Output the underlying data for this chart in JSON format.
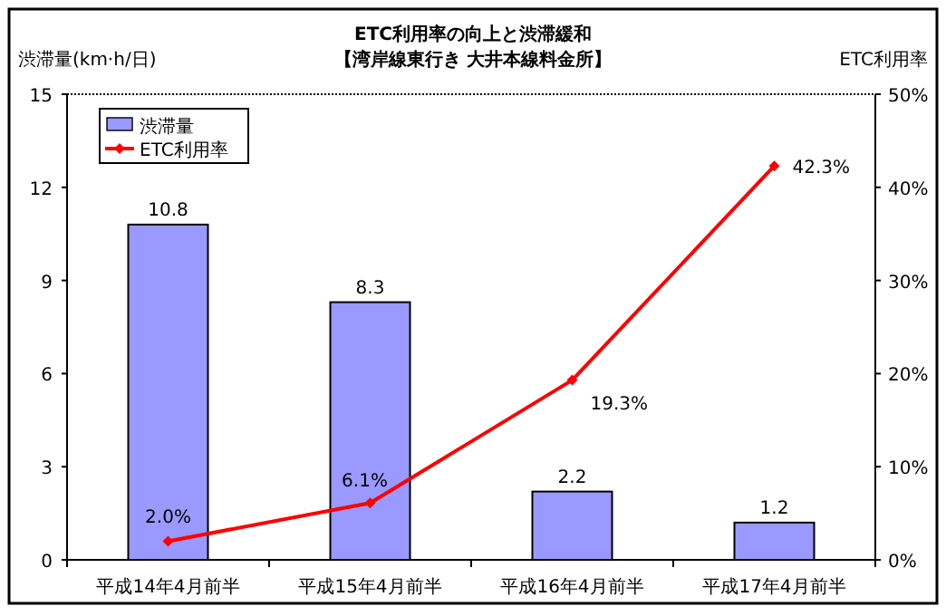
{
  "chart_data": {
    "type": "bar",
    "title": "ETC利用率の向上と渋滞緩和",
    "subtitle": "【湾岸線東行き  大井本線料金所】",
    "ylabel": "渋滞量(km·h/日)",
    "y2label": "ETC利用率",
    "categories": [
      "平成14年4月前半",
      "平成15年4月前半",
      "平成16年4月前半",
      "平成17年4月前半"
    ],
    "series": [
      {
        "name": "渋滞量",
        "color": "#9999ff",
        "values": [
          10.8,
          8.3,
          2.2,
          1.2
        ],
        "value_labels": [
          "10.8",
          "8.3",
          "2.2",
          "1.2"
        ]
      },
      {
        "name": "ETC利用率",
        "type": "line",
        "axis": "y2",
        "color": "#ff0000",
        "values": [
          2.0,
          6.1,
          19.3,
          42.3
        ],
        "value_labels": [
          "2.0%",
          "6.1%",
          "19.3%",
          "42.3%"
        ]
      }
    ],
    "ylim": [
      0,
      15
    ],
    "yticks": [
      0,
      3,
      6,
      9,
      12,
      15
    ],
    "y2lim": [
      0,
      50
    ],
    "y2ticks": [
      {
        "value": 0,
        "label": "0%"
      },
      {
        "value": 10,
        "label": "10%"
      },
      {
        "value": 20,
        "label": "20%"
      },
      {
        "value": 30,
        "label": "30%"
      },
      {
        "value": 40,
        "label": "40%"
      },
      {
        "value": 50,
        "label": "50%"
      }
    ],
    "marker": "diamond",
    "legend": "top left",
    "grid": false
  }
}
